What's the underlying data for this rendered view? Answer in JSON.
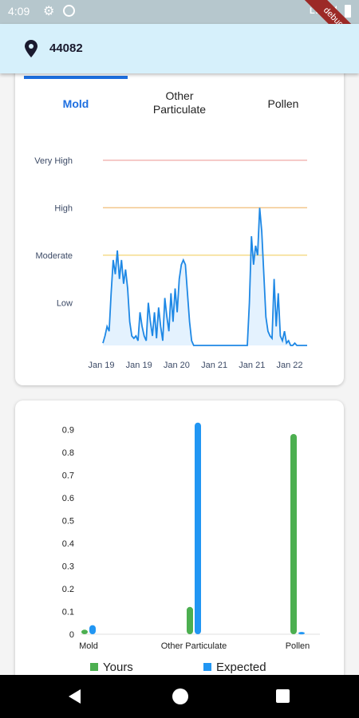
{
  "status_bar": {
    "time": "4:09",
    "network": "LTE",
    "debug_banner": "debug",
    "icons": [
      "gear-icon",
      "sync-icon",
      "signal-icon",
      "battery-icon"
    ]
  },
  "header": {
    "zip": "44082",
    "icon": "location-pin-icon"
  },
  "tabs": [
    {
      "label": "Mold",
      "selected": true
    },
    {
      "label": "Other\nParticulate",
      "selected": false
    },
    {
      "label": "Pollen",
      "selected": false
    }
  ],
  "colors": {
    "accent": "#1e6fe0",
    "yours": "#4caf50",
    "expected": "#2196f3",
    "appbar": "#d6f0fb"
  },
  "chart_data": [
    {
      "type": "line",
      "series": [
        {
          "values": [
            0.15,
            0.3,
            0.5,
            0.4,
            1.2,
            1.9,
            1.6,
            2.1,
            1.5,
            1.9,
            1.4,
            1.7,
            1.3,
            0.6,
            0.3,
            0.25,
            0.3,
            0.2,
            0.8,
            0.5,
            0.3,
            0.2,
            1.0,
            0.6,
            0.3,
            0.8,
            0.25,
            0.9,
            0.5,
            0.2,
            1.1,
            0.7,
            0.4,
            1.2,
            0.6,
            1.3,
            0.8,
            1.5,
            1.8,
            1.9,
            1.8,
            1.2,
            0.6,
            0.2,
            0.1,
            0.1,
            0.1,
            0.1,
            0.1,
            0.1,
            0.1,
            0.1,
            0.1,
            0.1,
            0.1,
            0.1,
            0.1,
            0.1,
            0.1,
            0.1,
            0.1,
            0.1,
            0.1,
            0.1,
            0.1,
            0.1,
            0.1,
            0.1,
            0.1,
            0.1,
            0.1,
            1.0,
            2.4,
            1.8,
            2.2,
            2.0,
            3.0,
            2.5,
            1.6,
            0.7,
            0.4,
            0.3,
            0.25,
            1.5,
            0.5,
            1.2,
            0.3,
            0.2,
            0.4,
            0.15,
            0.2,
            0.1,
            0.1,
            0.15,
            0.1,
            0.1,
            0.1,
            0.1,
            0.1,
            0.1
          ],
          "x_range": [
            "Jan 19",
            "Jan 22"
          ]
        }
      ],
      "x_tick_labels": [
        "Jan 19",
        "Jan 19",
        "Jan 20",
        "Jan 21",
        "Jan 21",
        "Jan 22"
      ],
      "y_tick_labels": [
        "Low",
        "Moderate",
        "High",
        "Very High"
      ],
      "threshold_lines": [
        {
          "level": "Moderate",
          "value": 2,
          "color": "#f5dc8c"
        },
        {
          "level": "High",
          "value": 3,
          "color": "#f3c68c"
        },
        {
          "level": "Very High",
          "value": 4,
          "color": "#f2b8b5"
        }
      ],
      "ylim": [
        0,
        4.3
      ]
    },
    {
      "type": "bar",
      "categories": [
        "Mold",
        "Other Particulate",
        "Pollen"
      ],
      "series": [
        {
          "name": "Yours",
          "values": [
            0.02,
            0.12,
            0.88
          ]
        },
        {
          "name": "Expected",
          "values": [
            0.04,
            0.93,
            0.01
          ]
        }
      ],
      "y_ticks": [
        "0",
        "0.1",
        "0.2",
        "0.3",
        "0.4",
        "0.5",
        "0.6",
        "0.7",
        "0.8",
        "0.9"
      ],
      "ylim": [
        0,
        0.95
      ],
      "legend": [
        {
          "label": "Yours"
        },
        {
          "label": "Expected"
        }
      ],
      "legend_position": "bottom"
    }
  ]
}
